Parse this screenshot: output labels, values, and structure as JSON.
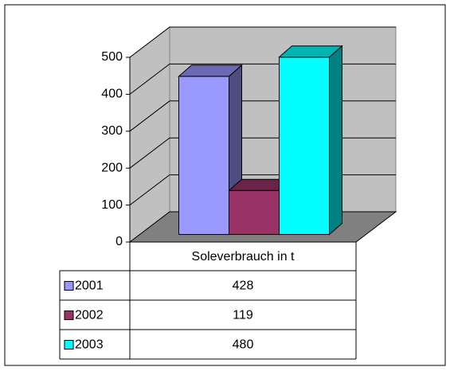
{
  "chart_data": {
    "type": "bar",
    "categories": [
      "Soleverbrauch in t"
    ],
    "series": [
      {
        "name": "2001",
        "color": "#9999ff",
        "values": [
          428
        ]
      },
      {
        "name": "2002",
        "color": "#993366",
        "values": [
          119
        ]
      },
      {
        "name": "2003",
        "color": "#00ffff",
        "values": [
          480
        ]
      }
    ],
    "ylim": [
      0,
      500
    ],
    "yticks": [
      0,
      100,
      200,
      300,
      400,
      500
    ],
    "grid": true,
    "legend": "table"
  }
}
